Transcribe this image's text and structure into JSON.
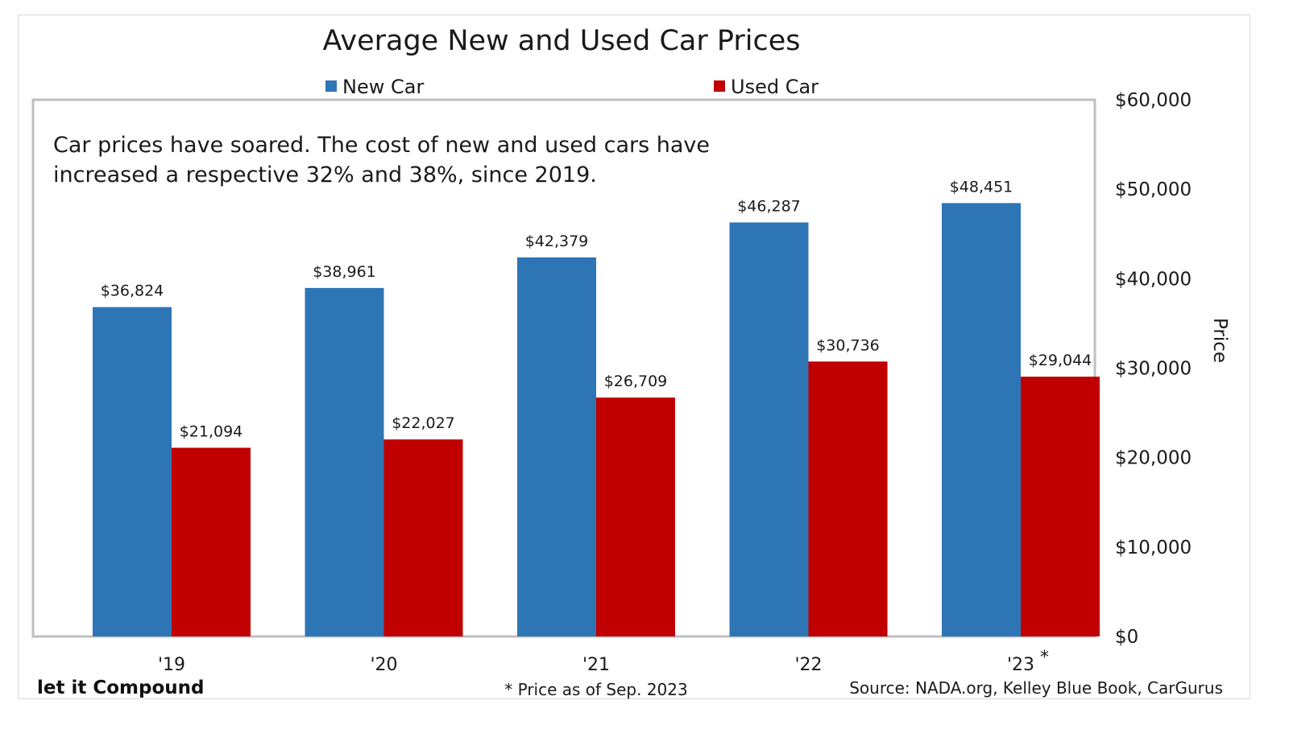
{
  "chart_data": {
    "type": "bar",
    "title": "Average New and Used Car Prices",
    "categories": [
      "'19",
      "'20",
      "'21",
      "'22",
      "'23"
    ],
    "category_marker": [
      "",
      "",
      "",
      "",
      "*"
    ],
    "series": [
      {
        "name": "New Car",
        "color": "#2e75b6",
        "values": [
          36824,
          38961,
          42379,
          46287,
          48451
        ],
        "labels": [
          "$36,824",
          "$38,961",
          "$42,379",
          "$46,287",
          "$48,451"
        ]
      },
      {
        "name": "Used Car",
        "color": "#c00000",
        "values": [
          21094,
          22027,
          26709,
          30736,
          29044
        ],
        "labels": [
          "$21,094",
          "$22,027",
          "$26,709",
          "$30,736",
          "$29,044"
        ]
      }
    ],
    "ylabel": "Price",
    "ylim": [
      0,
      60000
    ],
    "yticks": [
      0,
      10000,
      20000,
      30000,
      40000,
      50000,
      60000
    ],
    "ytick_labels": [
      "$0",
      "$10,000",
      "$20,000",
      "$30,000",
      "$40,000",
      "$50,000",
      "$60,000"
    ],
    "y_axis_side": "right",
    "legend_position": "top",
    "grid": false,
    "annotation": [
      "Car prices have soared. The cost of new and used cars have",
      "increased a respective 32% and 38%, since 2019."
    ]
  },
  "footer": {
    "brand": "let it Compound",
    "note": "* Price as of Sep. 2023",
    "source": "Source: NADA.org, Kelley Blue Book, CarGurus"
  },
  "colors": {
    "plot_border": "#bfbfbf",
    "text": "#1a1a1a"
  }
}
